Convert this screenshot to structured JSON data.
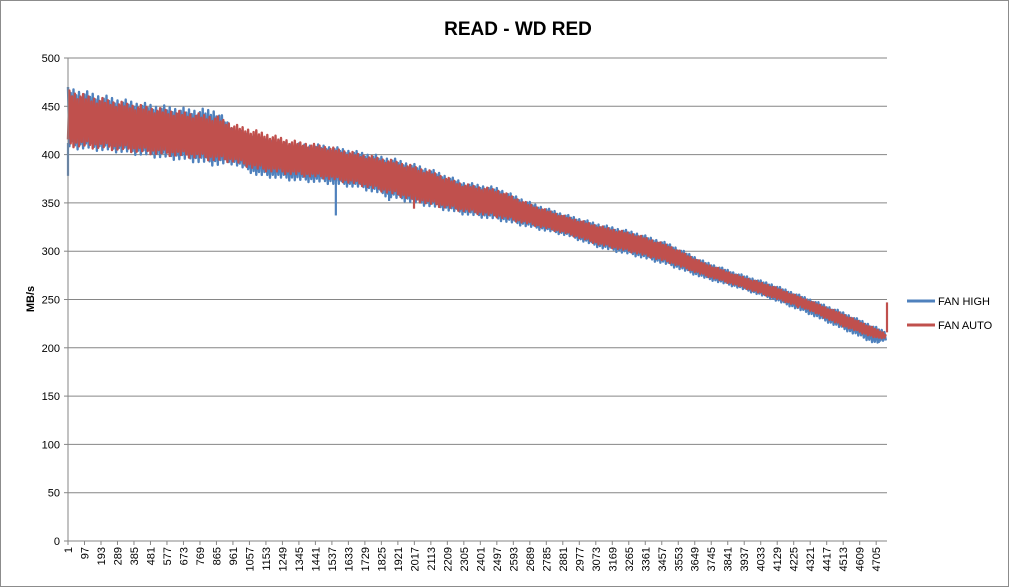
{
  "chart_data": {
    "type": "line",
    "title": "READ - WD RED",
    "xlabel": "",
    "ylabel": "MB/s",
    "ylim": [
      0,
      500
    ],
    "yticks": [
      0,
      50,
      100,
      150,
      200,
      250,
      300,
      350,
      400,
      450,
      500
    ],
    "xlim": [
      1,
      4768
    ],
    "xticks": [
      1,
      97,
      193,
      289,
      385,
      481,
      577,
      673,
      769,
      865,
      961,
      1057,
      1153,
      1249,
      1345,
      1441,
      1537,
      1633,
      1729,
      1825,
      1921,
      2017,
      2113,
      2209,
      2305,
      2401,
      2497,
      2593,
      2689,
      2785,
      2881,
      2977,
      3073,
      3169,
      3265,
      3361,
      3457,
      3553,
      3649,
      3745,
      3841,
      3937,
      4033,
      4129,
      4225,
      4321,
      4417,
      4513,
      4609,
      4705
    ],
    "grid": true,
    "legend": "right",
    "series": [
      {
        "name": "FAN HIGH",
        "color": "#4f81bd",
        "envelope": {
          "x": [
            1,
            100,
            300,
            500,
            700,
            865,
            961,
            1100,
            1300,
            1500,
            1700,
            1900,
            2100,
            2300,
            2500,
            2700,
            2900,
            3100,
            3300,
            3500,
            3700,
            3900,
            4100,
            4300,
            4500,
            4700,
            4768
          ],
          "upper": [
            470,
            466,
            458,
            452,
            448,
            447,
            428,
            418,
            412,
            410,
            403,
            396,
            386,
            372,
            366,
            350,
            338,
            328,
            320,
            308,
            290,
            277,
            266,
            252,
            238,
            222,
            216
          ],
          "lower": [
            406,
            405,
            402,
            397,
            393,
            388,
            390,
            378,
            373,
            370,
            365,
            354,
            346,
            338,
            332,
            324,
            316,
            303,
            295,
            285,
            272,
            262,
            250,
            236,
            220,
            204,
            208
          ]
        },
        "spikes": [
          [
            1,
            378
          ],
          [
            1560,
            337
          ],
          [
            1870,
            352
          ],
          [
            2230,
            356
          ],
          [
            4720,
            205
          ]
        ]
      },
      {
        "name": "FAN AUTO",
        "color": "#c0504d",
        "envelope": {
          "x": [
            1,
            100,
            300,
            500,
            700,
            865,
            961,
            1100,
            1300,
            1500,
            1700,
            1900,
            2100,
            2300,
            2500,
            2700,
            2900,
            3100,
            3300,
            3500,
            3700,
            3900,
            4100,
            4300,
            4500,
            4700,
            4768
          ],
          "upper": [
            468,
            462,
            455,
            449,
            444,
            440,
            432,
            425,
            415,
            409,
            401,
            394,
            384,
            370,
            364,
            348,
            336,
            326,
            318,
            306,
            288,
            275,
            264,
            250,
            236,
            220,
            214
          ],
          "lower": [
            408,
            407,
            404,
            400,
            397,
            393,
            392,
            384,
            379,
            375,
            368,
            358,
            348,
            341,
            335,
            327,
            318,
            306,
            298,
            288,
            275,
            264,
            252,
            240,
            223,
            210,
            210
          ]
        },
        "spikes": [
          [
            2015,
            344
          ],
          [
            4250,
            241
          ],
          [
            4560,
            223
          ],
          [
            4768,
            247
          ]
        ]
      }
    ]
  }
}
